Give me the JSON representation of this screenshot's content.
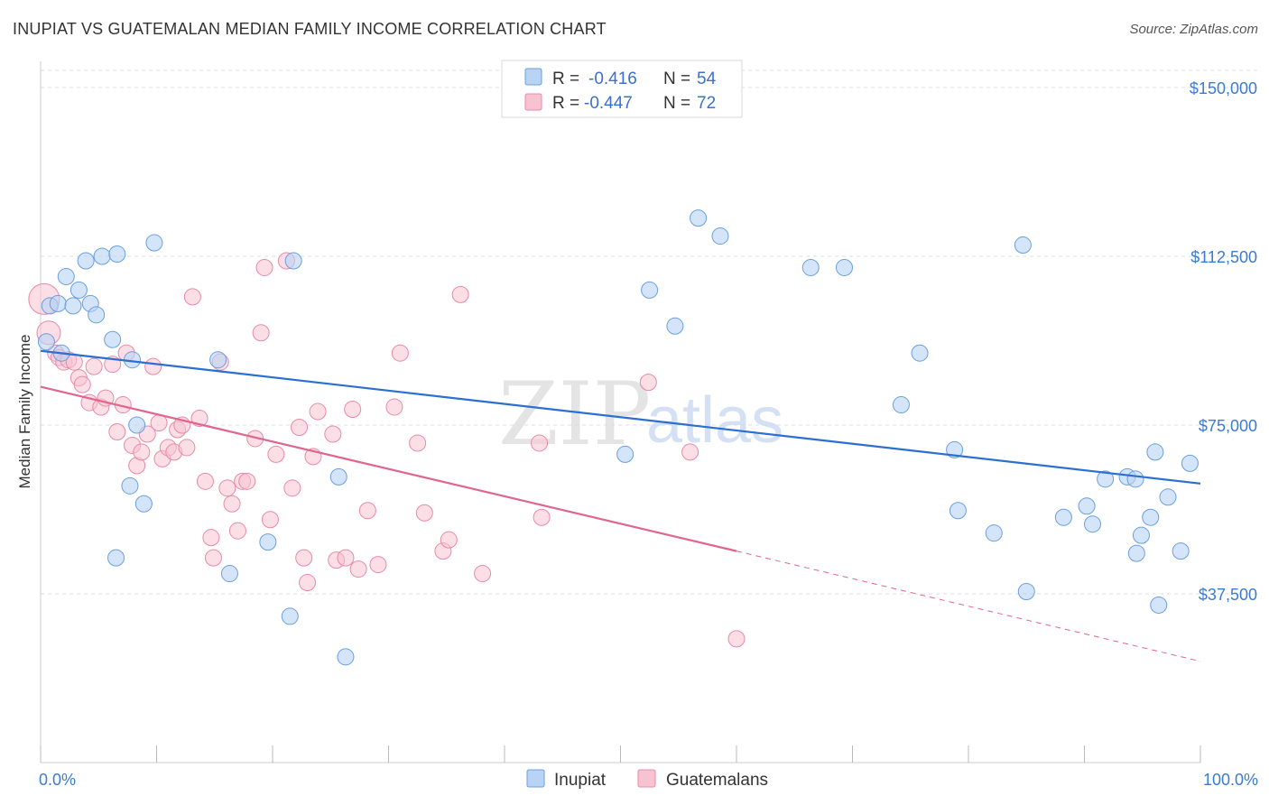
{
  "title": "INUPIAT VS GUATEMALAN MEDIAN FAMILY INCOME CORRELATION CHART",
  "source": "Source: ZipAtlas.com",
  "watermark": {
    "zip": "ZIP",
    "atlas": "atlas"
  },
  "colors": {
    "inupiat_fill": "#b9d3f5",
    "inupiat_stroke": "#6a9fe0",
    "inupiat_line": "#2b6fd1",
    "guat_fill": "#f7c2d2",
    "guat_stroke": "#e88aa8",
    "guat_line": "#e0658f",
    "tick_text": "#3b7bd1",
    "grid": "#dddddd"
  },
  "legend": {
    "rows": [
      {
        "r_label": "R =",
        "r_value": "-0.416",
        "n_label": "N =",
        "n_value": "54"
      },
      {
        "r_label": "R =",
        "r_value": "-0.447",
        "n_label": "N =",
        "n_value": "72"
      }
    ]
  },
  "bottom_legend": [
    "Inupiat",
    "Guatemalans"
  ],
  "chart_data": {
    "type": "scatter",
    "title": "INUPIAT VS GUATEMALAN MEDIAN FAMILY INCOME CORRELATION CHART",
    "xlabel": "",
    "ylabel": "Median Family Income",
    "xlim": [
      0,
      100
    ],
    "ylim": [
      0,
      150000
    ],
    "x_tick_labels": [
      "0.0%",
      "100.0%"
    ],
    "y_ticks": [
      37500,
      75000,
      112500,
      150000
    ],
    "y_tick_labels": [
      "$37,500",
      "$75,000",
      "$112,500",
      "$150,000"
    ],
    "grid": true,
    "legend_position": "top-center",
    "series": [
      {
        "name": "Inupiat",
        "R": -0.416,
        "N": 54,
        "trend": {
          "x": [
            0,
            100
          ],
          "y": [
            91500,
            62000
          ]
        },
        "points": [
          [
            0.5,
            93500
          ],
          [
            0.8,
            101500
          ],
          [
            1.5,
            102000
          ],
          [
            1.8,
            91000
          ],
          [
            2.2,
            108000
          ],
          [
            2.8,
            101500
          ],
          [
            3.3,
            105000
          ],
          [
            3.9,
            111500
          ],
          [
            4.3,
            102000
          ],
          [
            4.8,
            99500
          ],
          [
            5.3,
            112500
          ],
          [
            6.2,
            94000
          ],
          [
            6.5,
            45500
          ],
          [
            6.6,
            113000
          ],
          [
            7.7,
            61500
          ],
          [
            7.9,
            89500
          ],
          [
            8.3,
            75000
          ],
          [
            8.9,
            57500
          ],
          [
            9.8,
            115500
          ],
          [
            15.3,
            89500
          ],
          [
            16.3,
            42000
          ],
          [
            19.6,
            49000
          ],
          [
            21.5,
            32500
          ],
          [
            21.8,
            111500
          ],
          [
            25.7,
            63500
          ],
          [
            26.3,
            23500
          ],
          [
            50.4,
            68500
          ],
          [
            52.5,
            105000
          ],
          [
            54.7,
            97000
          ],
          [
            56.7,
            121000
          ],
          [
            58.6,
            117000
          ],
          [
            66.4,
            110000
          ],
          [
            69.3,
            110000
          ],
          [
            75.8,
            91000
          ],
          [
            74.2,
            79500
          ],
          [
            78.8,
            69500
          ],
          [
            79.1,
            56000
          ],
          [
            82.2,
            51000
          ],
          [
            84.7,
            115000
          ],
          [
            85.0,
            38000
          ],
          [
            88.2,
            54500
          ],
          [
            90.2,
            57000
          ],
          [
            90.7,
            53000
          ],
          [
            91.8,
            63000
          ],
          [
            93.7,
            63500
          ],
          [
            94.4,
            63000
          ],
          [
            94.5,
            46500
          ],
          [
            94.9,
            50500
          ],
          [
            95.7,
            54500
          ],
          [
            96.1,
            69000
          ],
          [
            97.2,
            59000
          ],
          [
            96.4,
            35000
          ],
          [
            98.3,
            47000
          ],
          [
            99.1,
            66500
          ]
        ]
      },
      {
        "name": "Guatemalans",
        "R": -0.447,
        "N": 72,
        "trend": {
          "x": [
            0,
            60
          ],
          "y": [
            83500,
            47000
          ]
        },
        "trend_dashed": {
          "x": [
            60,
            100
          ],
          "y": [
            47000,
            22500
          ]
        },
        "points": [
          [
            0.3,
            103000
          ],
          [
            0.7,
            95500
          ],
          [
            1.3,
            91000
          ],
          [
            1.6,
            90000
          ],
          [
            2.0,
            89000
          ],
          [
            2.4,
            89500
          ],
          [
            2.9,
            89000
          ],
          [
            3.3,
            85500
          ],
          [
            3.6,
            84000
          ],
          [
            4.2,
            80000
          ],
          [
            4.6,
            88000
          ],
          [
            5.2,
            79000
          ],
          [
            5.6,
            81000
          ],
          [
            6.2,
            88500
          ],
          [
            6.6,
            73500
          ],
          [
            7.1,
            79500
          ],
          [
            7.4,
            91000
          ],
          [
            7.9,
            70500
          ],
          [
            8.3,
            66000
          ],
          [
            8.7,
            69000
          ],
          [
            9.2,
            73000
          ],
          [
            9.7,
            88000
          ],
          [
            10.2,
            75500
          ],
          [
            10.5,
            67500
          ],
          [
            11.0,
            70000
          ],
          [
            11.5,
            69000
          ],
          [
            11.8,
            74000
          ],
          [
            12.2,
            75000
          ],
          [
            12.6,
            70000
          ],
          [
            13.1,
            103500
          ],
          [
            13.7,
            76500
          ],
          [
            14.2,
            62500
          ],
          [
            14.7,
            50000
          ],
          [
            14.9,
            45500
          ],
          [
            15.5,
            89000
          ],
          [
            16.1,
            61000
          ],
          [
            16.5,
            57500
          ],
          [
            17.0,
            51500
          ],
          [
            17.4,
            62500
          ],
          [
            17.8,
            62500
          ],
          [
            18.5,
            72000
          ],
          [
            19.0,
            95500
          ],
          [
            19.3,
            110000
          ],
          [
            19.8,
            54000
          ],
          [
            20.3,
            68500
          ],
          [
            21.2,
            111500
          ],
          [
            21.7,
            61000
          ],
          [
            22.3,
            74500
          ],
          [
            22.7,
            45500
          ],
          [
            23.0,
            40000
          ],
          [
            23.5,
            68000
          ],
          [
            23.9,
            78000
          ],
          [
            25.2,
            73000
          ],
          [
            25.5,
            45000
          ],
          [
            26.3,
            45500
          ],
          [
            26.9,
            78500
          ],
          [
            27.4,
            43000
          ],
          [
            28.2,
            56000
          ],
          [
            29.1,
            44000
          ],
          [
            30.5,
            79000
          ],
          [
            31.0,
            91000
          ],
          [
            32.5,
            71000
          ],
          [
            33.1,
            55500
          ],
          [
            34.7,
            47000
          ],
          [
            35.2,
            49500
          ],
          [
            36.2,
            104000
          ],
          [
            38.1,
            42000
          ],
          [
            43.0,
            71000
          ],
          [
            43.2,
            54500
          ],
          [
            52.4,
            84500
          ],
          [
            56.0,
            69000
          ],
          [
            60.0,
            27500
          ]
        ]
      }
    ]
  }
}
